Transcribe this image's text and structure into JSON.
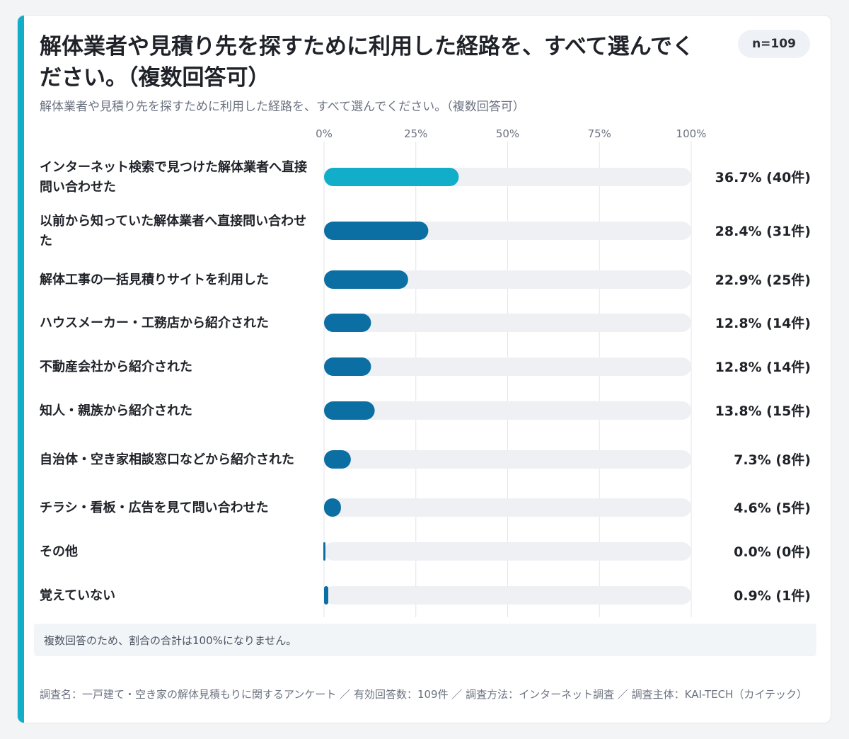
{
  "title": "解体業者や見積り先を探すために利用した経路を、すべて選んでください。（複数回答可）",
  "sample_badge": "n=109",
  "subtitle": "解体業者や見積り先を探すために利用した経路を、すべて選んでください。（複数回答可）",
  "note": "複数回答のため、割合の合計は100%になりません。",
  "footer": "調査名：一戸建て・空き家の解体見積もりに関するアンケート ／ 有効回答数：109件 ／ 調査方法：インターネット調査 ／ 調査主体：KAI-TECH（カイテック）",
  "colors": {
    "accent": "#12aec9",
    "highlight_bar": "#12aec9",
    "bar": "#0b6fa4",
    "track": "#eef0f4",
    "grid": "#e3e6ea"
  },
  "chart_data": {
    "type": "bar",
    "orientation": "horizontal",
    "xlim": [
      0,
      100
    ],
    "x_ticks": [
      "0%",
      "25%",
      "50%",
      "75%",
      "100%"
    ],
    "grid": true,
    "categories": [
      "インターネット検索で見つけた解体業者へ直接問い合わせた",
      "以前から知っていた解体業者へ直接問い合わせた",
      "解体工事の一括見積りサイトを利用した",
      "ハウスメーカー・工務店から紹介された",
      "不動産会社から紹介された",
      "知人・親族から紹介された",
      "自治体・空き家相談窓口などから紹介された",
      "チラシ・看板・広告を見て問い合わせた",
      "その他",
      "覚えていない"
    ],
    "values": [
      36.7,
      28.4,
      22.9,
      12.8,
      12.8,
      13.8,
      7.3,
      4.6,
      0.0,
      0.9
    ],
    "counts": [
      40,
      31,
      25,
      14,
      14,
      15,
      8,
      5,
      0,
      1
    ],
    "value_labels": [
      "36.7% (40件)",
      "28.4% (31件)",
      "22.9% (25件)",
      "12.8% (14件)",
      "12.8% (14件)",
      "13.8% (15件)",
      "7.3% (8件)",
      "4.6% (5件)",
      "0.0% (0件)",
      "0.9% (1件)"
    ],
    "highlight_index": 0
  }
}
